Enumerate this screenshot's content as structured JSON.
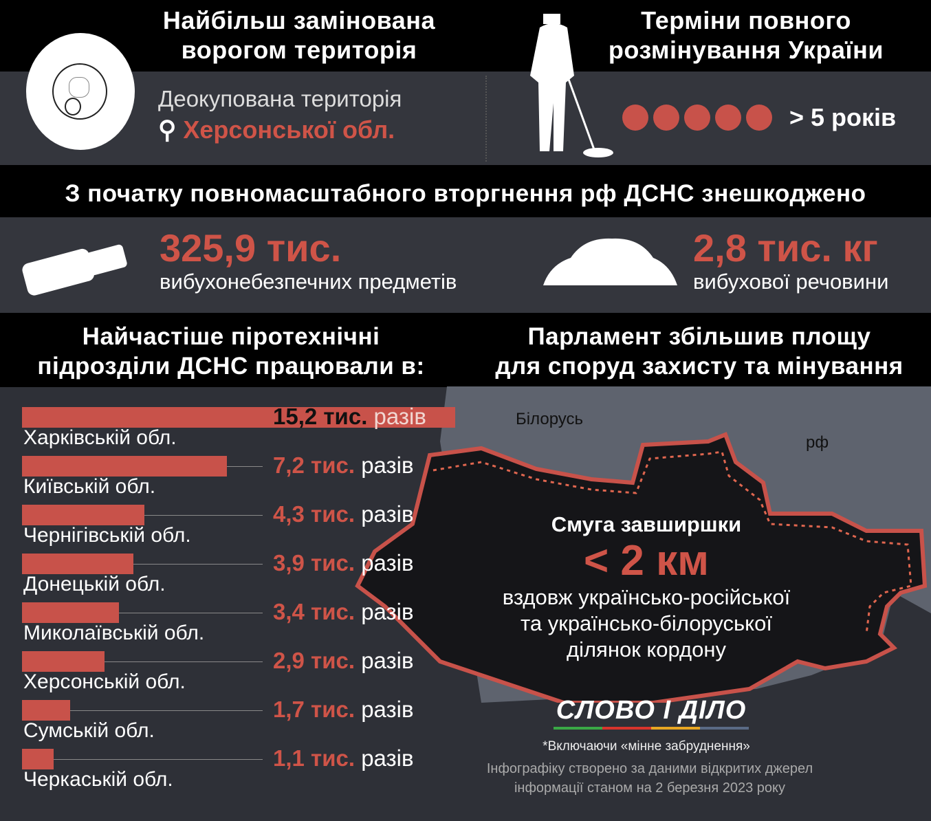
{
  "top_left": {
    "title_line1": "Найбільш замінована",
    "title_line2": "ворогом територія",
    "subtitle": "Деокупована територія",
    "region": "Херсонської обл."
  },
  "top_right": {
    "title_line1": "Терміни повного",
    "title_line2": "розмінування України",
    "dots": 5,
    "term": "> 5 років"
  },
  "middle": {
    "title": "З початку повномасштабного вторгнення рф ДСНС знешкоджено",
    "stat1": {
      "value": "325,9 тис.",
      "label": "вибухонебезпечних предметів"
    },
    "stat2": {
      "value": "2,8 тис. кг",
      "label": "вибухової речовини"
    }
  },
  "chart_section": {
    "title_line1": "Найчастіше піротехнічні",
    "title_line2": "підрозділи ДСНС працювали в:"
  },
  "map_section": {
    "title_line1": "Парламент збільшив площу",
    "title_line2": "для споруд захисту та мінування",
    "label_belarus": "Білорусь",
    "label_russia": "рф",
    "strip_title": "Смуга завширшки",
    "strip_value": "< 2 км",
    "strip_desc1": "вздовж українсько-російської",
    "strip_desc2": "та українсько-білоруської",
    "strip_desc3": "ділянок кордону"
  },
  "footer": {
    "logo": "СЛОВО І ДІЛО",
    "note": "*Включаючи «мінне забруднення»",
    "source1": "Інфографіку створено за даними відкритих джерел",
    "source2": "інформації станом на 2 березня 2023 року"
  },
  "colors": {
    "accent": "#c8524a",
    "dark": "#34363d",
    "black": "#000000",
    "neighbors": "#5e636e"
  },
  "chart_data": {
    "type": "bar",
    "orientation": "horizontal",
    "unit": "тис. разів",
    "categories": [
      "Харківській обл.",
      "Київській обл.",
      "Чернігівській обл.",
      "Донецькій обл.",
      "Миколаївській обл.",
      "Херсонській обл.",
      "Сумській обл.",
      "Черкаській обл."
    ],
    "values": [
      15.2,
      7.2,
      4.3,
      3.9,
      3.4,
      2.9,
      1.7,
      1.1
    ],
    "value_labels": [
      "15,2 тис.",
      "7,2 тис.",
      "4,3 тис.",
      "3,9 тис.",
      "3,4 тис.",
      "2,9 тис.",
      "1,7 тис.",
      "1,1 тис."
    ],
    "suffix": "разів"
  }
}
